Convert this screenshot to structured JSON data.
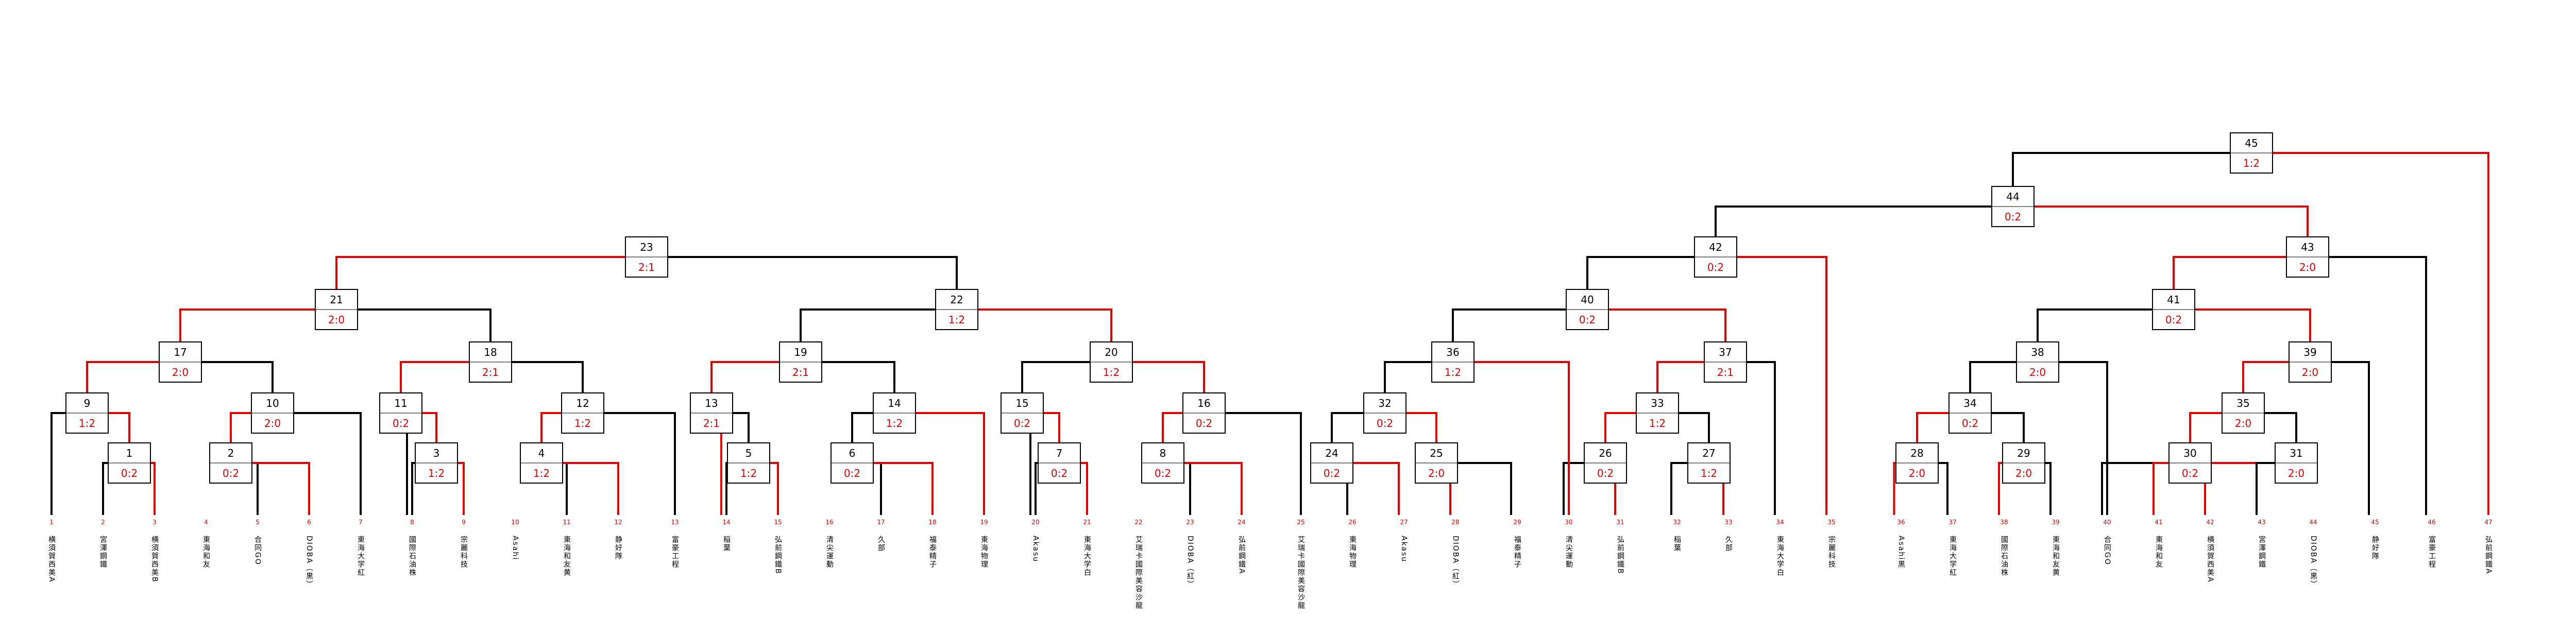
{
  "colors": {
    "win": "#e00000",
    "lose": "#000000",
    "box": "#000000"
  },
  "chart_data": {
    "type": "tournament-bracket",
    "title": "",
    "entrants": [
      {
        "seed": "1",
        "team": "横須賀西美A"
      },
      {
        "seed": "2",
        "team": "宮澤鋼鐵"
      },
      {
        "seed": "3",
        "team": "横須賀西美B"
      },
      {
        "seed": "4",
        "team": "東海和友"
      },
      {
        "seed": "5",
        "team": "合同GO"
      },
      {
        "seed": "6",
        "team": "DIOBA（黒）"
      },
      {
        "seed": "7",
        "team": "東海大学紅"
      },
      {
        "seed": "8",
        "team": "國際石油株"
      },
      {
        "seed": "9",
        "team": "宗麗科技"
      },
      {
        "seed": "10",
        "team": "Asahi"
      },
      {
        "seed": "11",
        "team": "東海和友黄"
      },
      {
        "seed": "12",
        "team": "静好隊"
      },
      {
        "seed": "13",
        "team": "富豪工程"
      },
      {
        "seed": "14",
        "team": "稲葉"
      },
      {
        "seed": "15",
        "team": "弘前鋼鐵B"
      },
      {
        "seed": "16",
        "team": "清尖運動"
      },
      {
        "seed": "17",
        "team": "久部"
      },
      {
        "seed": "18",
        "team": "福泰精子"
      },
      {
        "seed": "19",
        "team": "東海物理"
      },
      {
        "seed": "20",
        "team": "Akasu"
      },
      {
        "seed": "21",
        "team": "東海大学白"
      },
      {
        "seed": "22",
        "team": "艾瑞卡國際美容沙龍"
      },
      {
        "seed": "23",
        "team": "DIOBA（紅）"
      },
      {
        "seed": "24",
        "team": "弘前鋼鐵A"
      },
      {
        "seed": "25",
        "team": "艾瑞卡國際美容沙龍"
      },
      {
        "seed": "26",
        "team": "東海物理"
      },
      {
        "seed": "27",
        "team": "Akasu"
      },
      {
        "seed": "28",
        "team": "DIOBA（紅）"
      },
      {
        "seed": "29",
        "team": "福泰精子"
      },
      {
        "seed": "30",
        "team": "清尖運動"
      },
      {
        "seed": "31",
        "team": "弘前鋼鐵B"
      },
      {
        "seed": "32",
        "team": "稲葉"
      },
      {
        "seed": "33",
        "team": "久部"
      },
      {
        "seed": "34",
        "team": "東海大学白"
      },
      {
        "seed": "35",
        "team": "宗麗科技"
      },
      {
        "seed": "36",
        "team": "Asahi黒"
      },
      {
        "seed": "37",
        "team": "東海大学紅"
      },
      {
        "seed": "38",
        "team": "國際石油株"
      },
      {
        "seed": "39",
        "team": "東海和友黄"
      },
      {
        "seed": "40",
        "team": "合同GO"
      },
      {
        "seed": "41",
        "team": "東海和友"
      },
      {
        "seed": "42",
        "team": "横須賀西美A"
      },
      {
        "seed": "43",
        "team": "宮澤鋼鐵"
      },
      {
        "seed": "44",
        "team": "DIOBA（黒）"
      },
      {
        "seed": "45",
        "team": "静好隊"
      },
      {
        "seed": "46",
        "team": "富豪工程"
      },
      {
        "seed": "47",
        "team": "弘前鋼鐵A"
      }
    ],
    "matches": [
      {
        "id": "1",
        "score": "0:2"
      },
      {
        "id": "2",
        "score": "0:2"
      },
      {
        "id": "3",
        "score": "1:2"
      },
      {
        "id": "4",
        "score": "1:2"
      },
      {
        "id": "5",
        "score": "1:2"
      },
      {
        "id": "6",
        "score": "0:2"
      },
      {
        "id": "7",
        "score": "0:2"
      },
      {
        "id": "8",
        "score": "0:2"
      },
      {
        "id": "9",
        "score": "1:2"
      },
      {
        "id": "10",
        "score": "2:0"
      },
      {
        "id": "11",
        "score": "0:2"
      },
      {
        "id": "12",
        "score": "1:2"
      },
      {
        "id": "13",
        "score": "2:1"
      },
      {
        "id": "14",
        "score": "1:2"
      },
      {
        "id": "15",
        "score": "0:2"
      },
      {
        "id": "16",
        "score": "0:2"
      },
      {
        "id": "17",
        "score": "2:0"
      },
      {
        "id": "18",
        "score": "2:1"
      },
      {
        "id": "19",
        "score": "2:1"
      },
      {
        "id": "20",
        "score": "1:2"
      },
      {
        "id": "21",
        "score": "2:0"
      },
      {
        "id": "22",
        "score": "1:2"
      },
      {
        "id": "23",
        "score": "2:1"
      },
      {
        "id": "24",
        "score": "0:2"
      },
      {
        "id": "25",
        "score": "2:0"
      },
      {
        "id": "26",
        "score": "0:2"
      },
      {
        "id": "27",
        "score": "1:2"
      },
      {
        "id": "28",
        "score": "2:0"
      },
      {
        "id": "29",
        "score": "2:0"
      },
      {
        "id": "30",
        "score": "0:2"
      },
      {
        "id": "31",
        "score": "2:0"
      },
      {
        "id": "32",
        "score": "0:2"
      },
      {
        "id": "33",
        "score": "1:2"
      },
      {
        "id": "34",
        "score": "0:2"
      },
      {
        "id": "35",
        "score": "2:0"
      },
      {
        "id": "36",
        "score": "1:2"
      },
      {
        "id": "37",
        "score": "2:1"
      },
      {
        "id": "38",
        "score": "2:0"
      },
      {
        "id": "39",
        "score": "2:0"
      },
      {
        "id": "40",
        "score": "0:2"
      },
      {
        "id": "41",
        "score": "0:2"
      },
      {
        "id": "42",
        "score": "0:2"
      },
      {
        "id": "43",
        "score": "2:0"
      },
      {
        "id": "44",
        "score": "0:2"
      },
      {
        "id": "45",
        "score": "1:2"
      }
    ]
  }
}
